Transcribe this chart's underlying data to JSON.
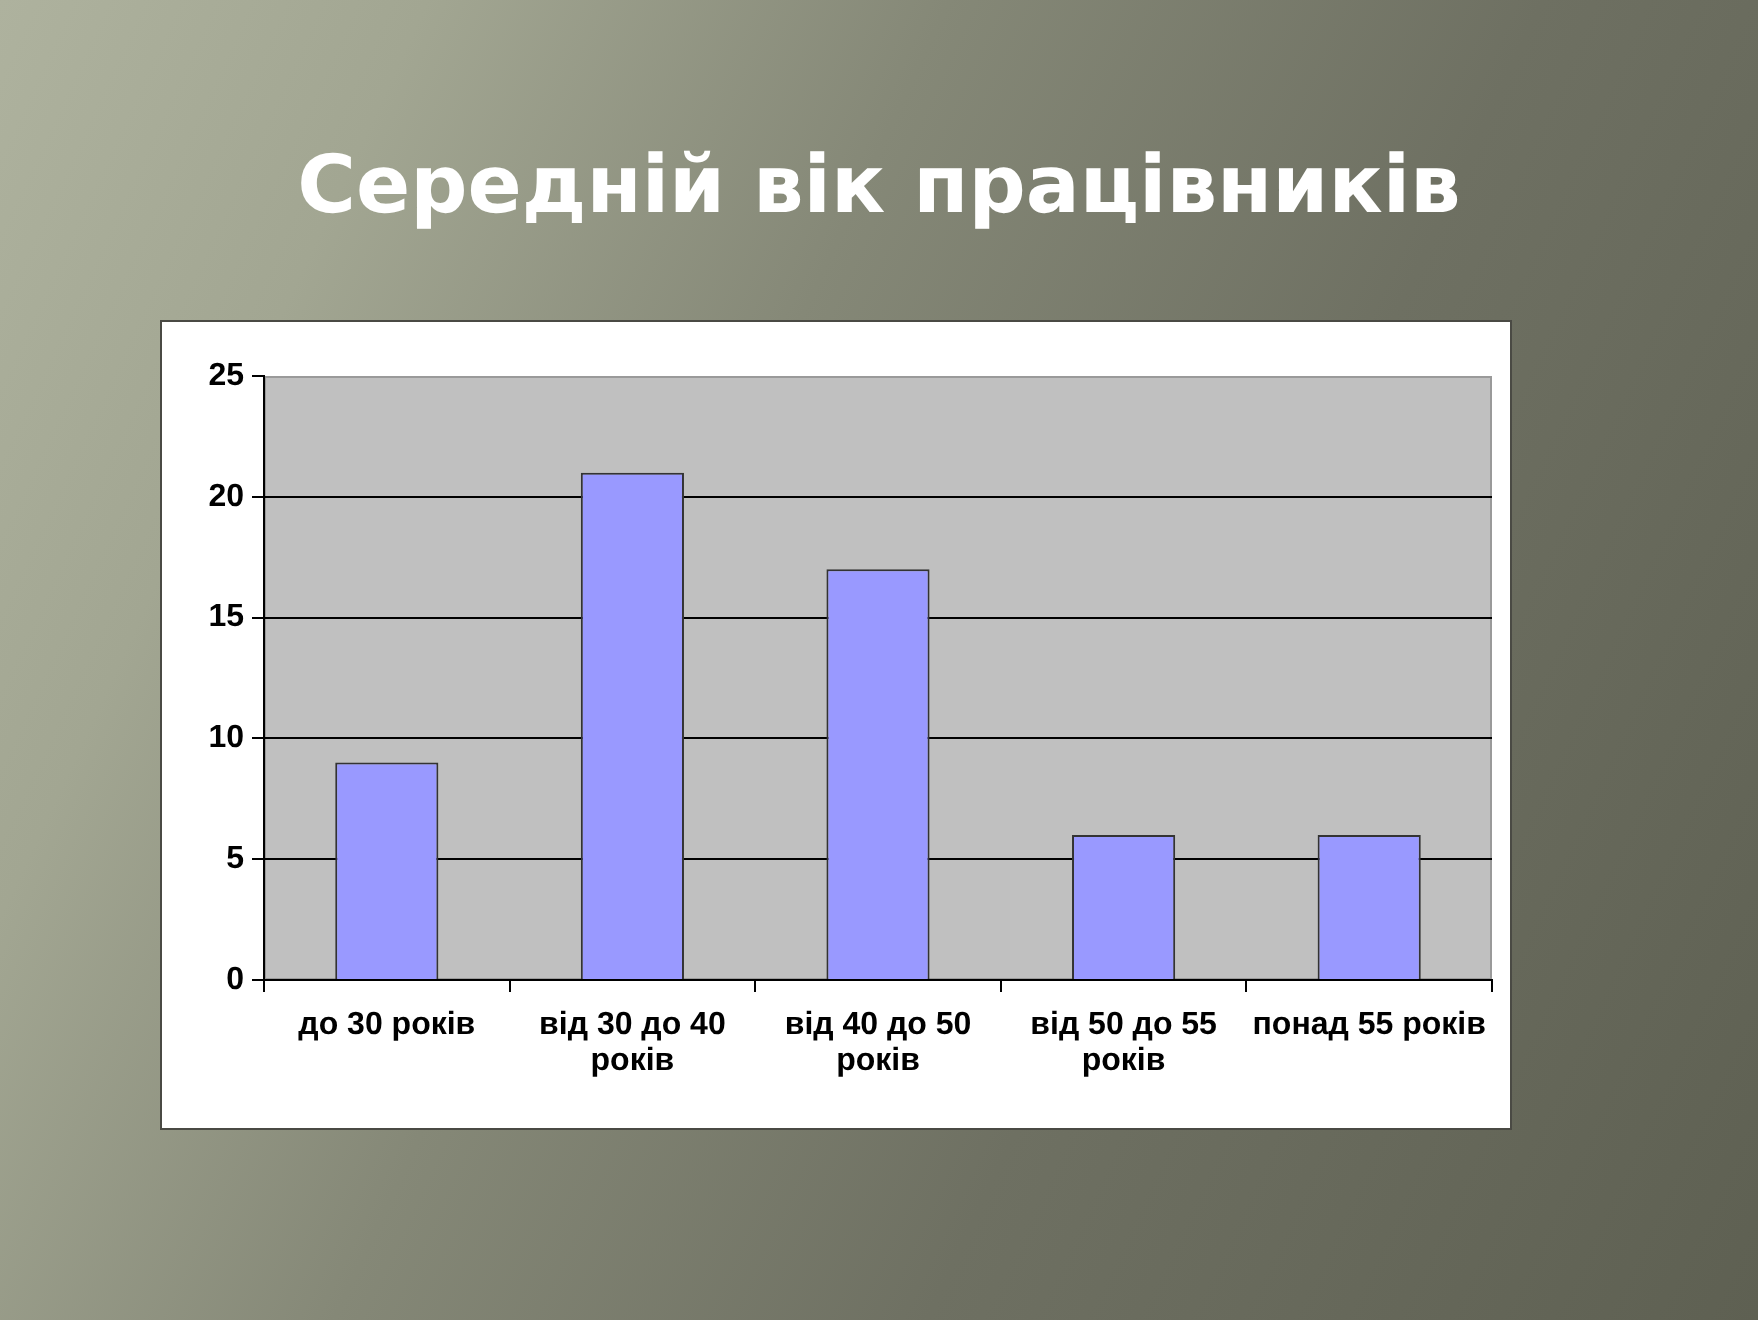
{
  "chart_data": {
    "type": "bar",
    "title": "Середній вік працівників",
    "categories": [
      "до 30 років",
      "від 30 до 40 років",
      "від 40 до 50 років",
      "від 50 до 55 років",
      "понад 55 років"
    ],
    "values": [
      9,
      21,
      17,
      6,
      6
    ],
    "color": "#9999ff",
    "ylim": [
      0,
      25
    ],
    "yticks": [
      0,
      5,
      10,
      15,
      20,
      25
    ],
    "grid": "y"
  }
}
